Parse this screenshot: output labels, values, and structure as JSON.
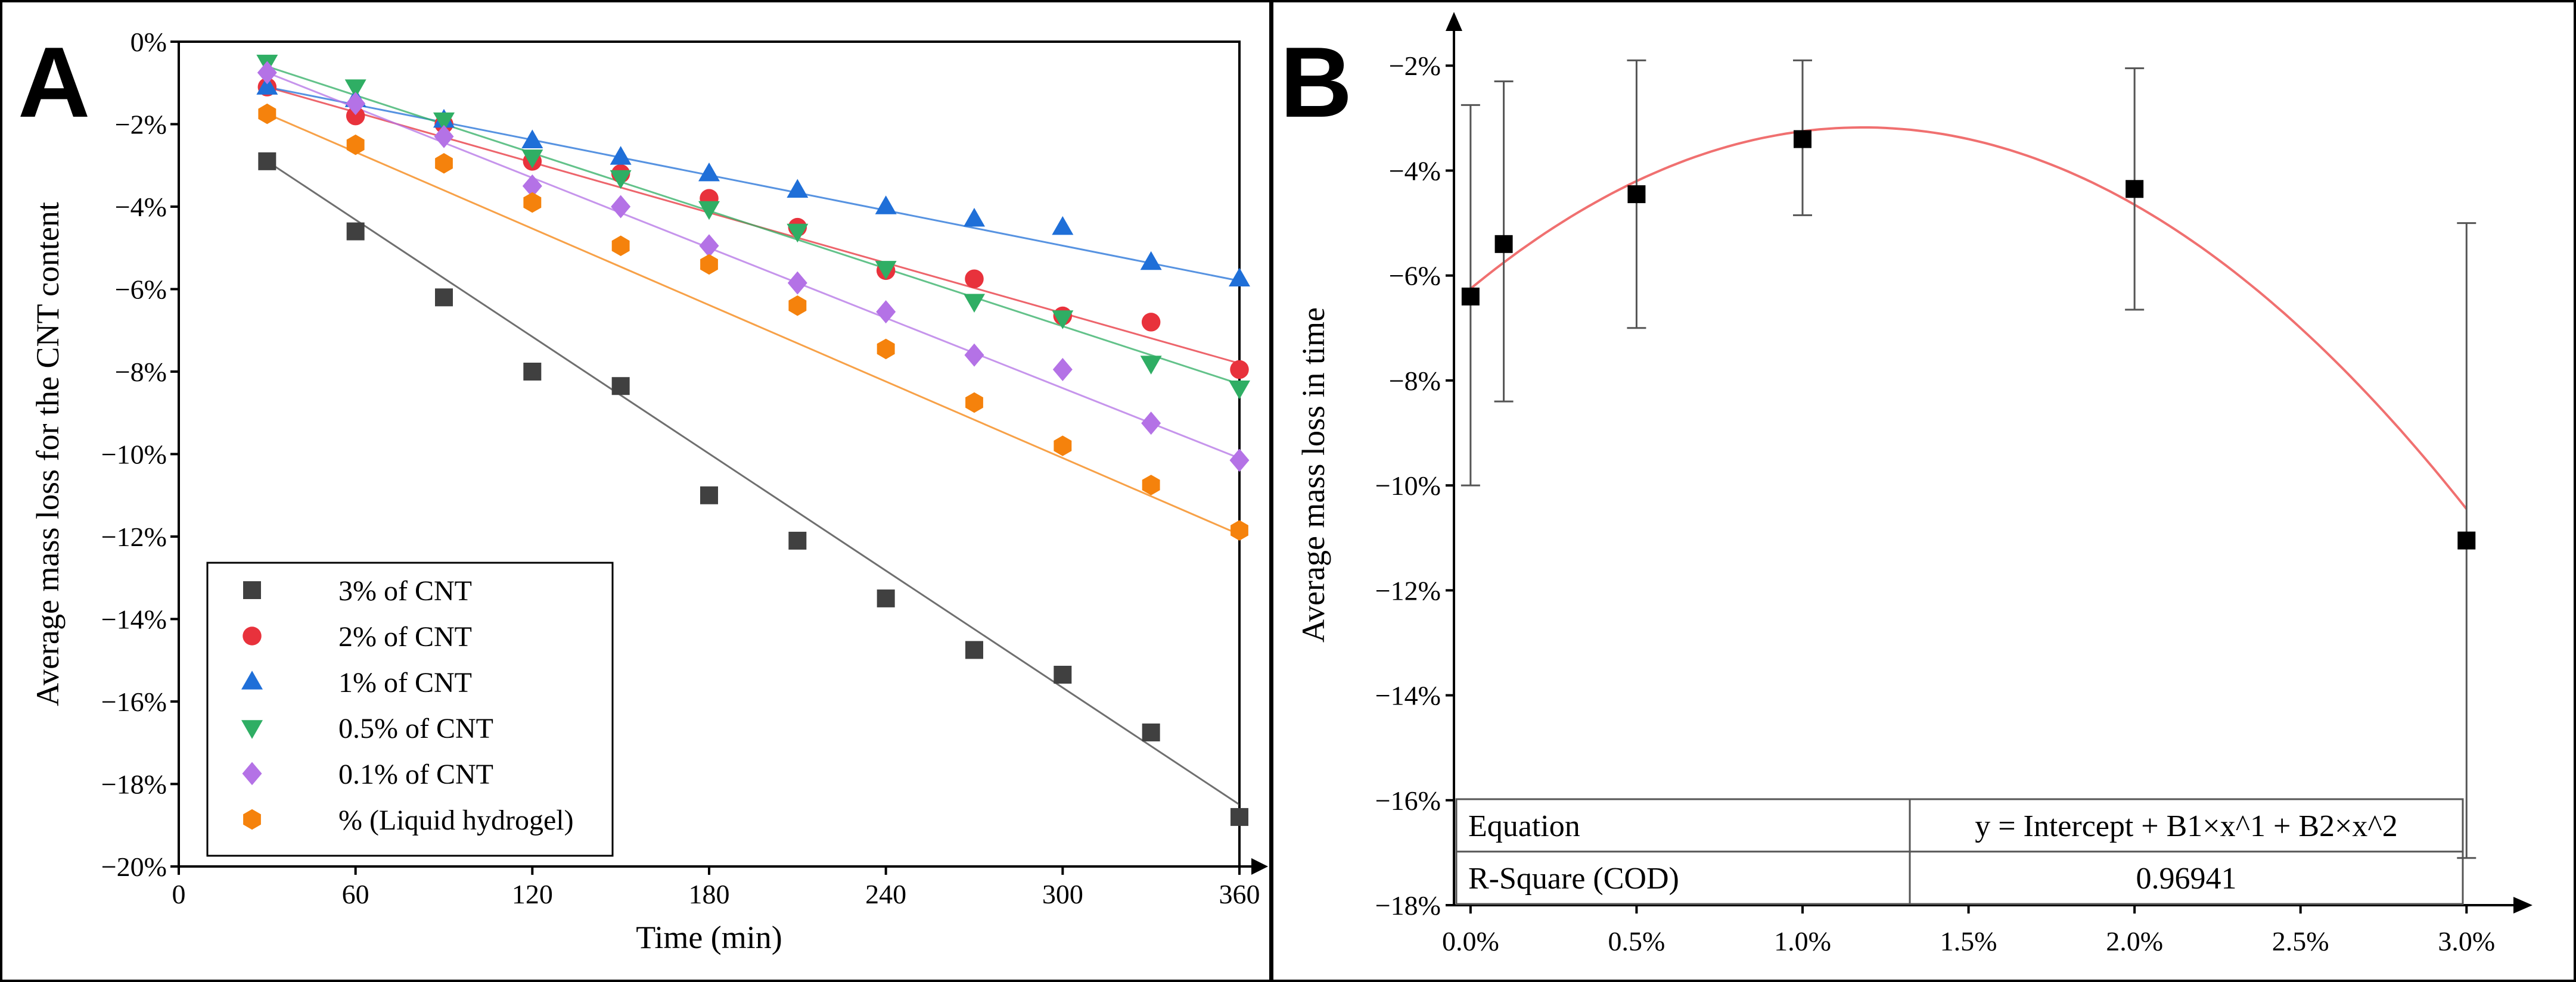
{
  "panel_a": {
    "letter": "A",
    "legend": [
      {
        "label": "3% of CNT",
        "color": "#404040",
        "marker": "square"
      },
      {
        "label": "2% of CNT",
        "color": "#e8323c",
        "marker": "circle"
      },
      {
        "label": "1% of CNT",
        "color": "#1f6fd8",
        "marker": "triangle-up"
      },
      {
        "label": "0.5% of CNT",
        "color": "#2fae64",
        "marker": "triangle-down"
      },
      {
        "label": "0.1% of CNT",
        "color": "#b472e6",
        "marker": "diamond"
      },
      {
        "label": "% (Liquid hydrogel)",
        "color": "#f5820c",
        "marker": "hexagon"
      }
    ]
  },
  "panel_b": {
    "letter": "B",
    "fit_table": {
      "rows": [
        {
          "label": "Equation",
          "value": "y = Intercept + B1×x^1 + B2×x^2"
        },
        {
          "label": "R-Square (COD)",
          "value": "0.96941"
        }
      ]
    }
  },
  "chart_data": [
    {
      "type": "scatter",
      "title": "",
      "xlabel": "Time (min)",
      "ylabel": "Average mass loss for the CNT content",
      "xlim": [
        0,
        360
      ],
      "ylim": [
        -20,
        0
      ],
      "x_ticks": [
        0,
        60,
        120,
        180,
        240,
        300,
        360
      ],
      "x_tick_labels": [
        "0",
        "60",
        "120",
        "180",
        "240",
        "300",
        "360"
      ],
      "y_ticks": [
        0,
        -2,
        -4,
        -6,
        -8,
        -10,
        -12,
        -14,
        -16,
        -18,
        -20
      ],
      "y_tick_labels": [
        "0%",
        "−2%",
        "−4%",
        "−6%",
        "−8%",
        "−10%",
        "−12%",
        "−14%",
        "−16%",
        "−18%",
        "−20%"
      ],
      "x": [
        30,
        60,
        90,
        120,
        150,
        180,
        210,
        240,
        270,
        300,
        330,
        360
      ],
      "series": [
        {
          "name": "3% of CNT",
          "color": "#404040",
          "marker": "square",
          "values": [
            -2.9,
            -4.6,
            -6.2,
            -8.0,
            -8.35,
            -11.0,
            -12.1,
            -13.5,
            -14.75,
            -15.35,
            -16.75,
            -18.8
          ],
          "fit": [
            -2.9,
            -18.5
          ]
        },
        {
          "name": "2% of CNT",
          "color": "#e8323c",
          "marker": "circle",
          "values": [
            -1.1,
            -1.8,
            -2.0,
            -2.9,
            -3.2,
            -3.8,
            -4.5,
            -5.55,
            -5.75,
            -6.65,
            -6.8,
            -7.95
          ],
          "fit": [
            -1.1,
            -7.8
          ]
        },
        {
          "name": "1% of CNT",
          "color": "#1f6fd8",
          "marker": "triangle-up",
          "values": [
            -1.1,
            -1.4,
            -1.9,
            -2.4,
            -2.8,
            -3.2,
            -3.6,
            -4.0,
            -4.3,
            -4.5,
            -5.35,
            -5.75
          ],
          "fit": [
            -1.1,
            -5.8
          ]
        },
        {
          "name": "0.5% of CNT",
          "color": "#2fae64",
          "marker": "triangle-down",
          "values": [
            -0.5,
            -1.1,
            -1.9,
            -2.8,
            -3.3,
            -4.05,
            -4.6,
            -5.5,
            -6.3,
            -6.7,
            -7.8,
            -8.4
          ],
          "fit": [
            -0.6,
            -8.3
          ]
        },
        {
          "name": "0.1% of CNT",
          "color": "#b472e6",
          "marker": "diamond",
          "values": [
            -0.75,
            -1.5,
            -2.3,
            -3.5,
            -4.0,
            -4.95,
            -5.85,
            -6.55,
            -7.6,
            -7.95,
            -9.25,
            -10.15
          ],
          "fit": [
            -0.75,
            -10.1
          ]
        },
        {
          "name": "% (Liquid hydrogel)",
          "color": "#f5820c",
          "marker": "hexagon",
          "values": [
            -1.75,
            -2.5,
            -2.95,
            -3.9,
            -4.95,
            -5.4,
            -6.4,
            -7.45,
            -8.75,
            -9.8,
            -10.75,
            -11.85
          ],
          "fit": [
            -1.75,
            -11.95
          ]
        }
      ]
    },
    {
      "type": "scatter",
      "title": "",
      "xlabel": "",
      "ylabel": "Average mass loss in time",
      "xlim": [
        -0.05,
        3.1
      ],
      "ylim": [
        -18,
        -1.6
      ],
      "x_ticks": [
        0,
        0.5,
        1.0,
        1.5,
        2.0,
        2.5,
        3.0
      ],
      "x_tick_labels": [
        "0.0%",
        "0.5%",
        "1.0%",
        "1.5%",
        "2.0%",
        "2.5%",
        "3.0%"
      ],
      "y_ticks": [
        -2,
        -4,
        -6,
        -8,
        -10,
        -12,
        -14,
        -16,
        -18
      ],
      "y_tick_labels": [
        "−2%",
        "−4%",
        "−6%",
        "−8%",
        "−10%",
        "−12%",
        "−14%",
        "−16%",
        "−18%"
      ],
      "series": [
        {
          "name": "Average mass loss in time",
          "color": "#000000",
          "marker": "square",
          "x": [
            0.0,
            0.1,
            0.5,
            1.0,
            2.0,
            3.0
          ],
          "values": [
            -6.4,
            -5.4,
            -4.45,
            -3.4,
            -4.35,
            -11.05
          ],
          "error_low": [
            -10.0,
            -8.4,
            -7.0,
            -4.85,
            -6.65,
            -17.1
          ],
          "error_high": [
            -2.75,
            -2.3,
            -1.9,
            -1.9,
            -2.05,
            -5.0
          ]
        }
      ],
      "fit": {
        "type": "quadratic",
        "color": "#f07070",
        "intercept": -6.25,
        "b1": 5.2,
        "b2": -2.2,
        "x_range": [
          0,
          3
        ]
      }
    }
  ]
}
